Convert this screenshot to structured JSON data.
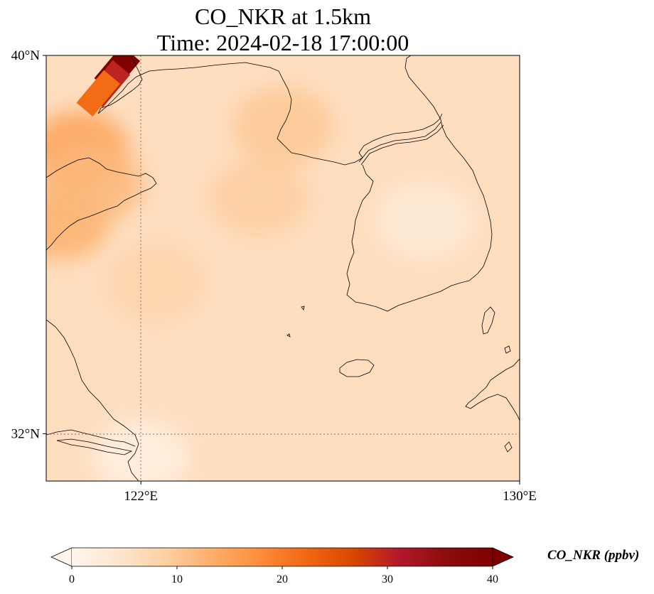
{
  "title_line1": "CO_NKR at 1.5km",
  "title_line2": "Time: 2024-02-18 17:00:00",
  "map": {
    "lon_range": [
      120,
      130
    ],
    "lat_range": [
      31,
      40
    ],
    "lat_ticks": [
      {
        "value": 40,
        "label": "40°N"
      },
      {
        "value": 32,
        "label": "32°N"
      }
    ],
    "lon_ticks": [
      {
        "value": 122,
        "label": "122°E"
      },
      {
        "value": 130,
        "label": "130°E"
      }
    ],
    "gridlines": {
      "lon": [
        122
      ],
      "lat": [
        32
      ]
    }
  },
  "colorbar": {
    "title": "CO_NKR (ppbv)",
    "min": 0,
    "max": 40,
    "extend": "both",
    "ticks": [
      {
        "value": 0,
        "label": "0"
      },
      {
        "value": 10,
        "label": "10"
      },
      {
        "value": 20,
        "label": "20"
      },
      {
        "value": 30,
        "label": "30"
      },
      {
        "value": 40,
        "label": "40"
      }
    ],
    "colors": [
      "#fff5eb",
      "#fee6ce",
      "#fdd0a2",
      "#fdae6b",
      "#fd8d3c",
      "#f16913",
      "#d94801",
      "#b2182b",
      "#8c0d0d",
      "#7f0000"
    ]
  },
  "field": {
    "background_value": 6,
    "plume": [
      {
        "lon": 121.5,
        "lat": 39.7,
        "value": 40
      },
      {
        "lon": 121.3,
        "lat": 39.4,
        "value": 30
      },
      {
        "lon": 121.1,
        "lat": 39.2,
        "value": 22
      }
    ],
    "patches": [
      {
        "lon": 120.7,
        "lat": 38.0,
        "value": 15
      },
      {
        "lon": 120.3,
        "lat": 36.5,
        "value": 13
      },
      {
        "lon": 121.0,
        "lat": 37.3,
        "value": 12
      },
      {
        "lon": 122.3,
        "lat": 35.2,
        "value": 8
      },
      {
        "lon": 125.0,
        "lat": 38.5,
        "value": 10
      },
      {
        "lon": 124.5,
        "lat": 37.0,
        "value": 9
      },
      {
        "lon": 122.0,
        "lat": 31.5,
        "value": 2
      },
      {
        "lon": 128.0,
        "lat": 36.5,
        "value": 3
      }
    ]
  }
}
